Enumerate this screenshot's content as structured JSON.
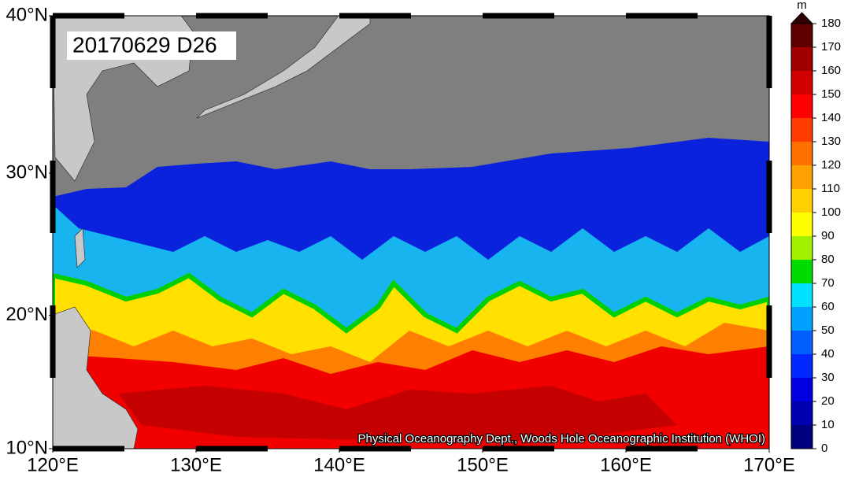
{
  "title": "20170629 D26",
  "credit": "Physical Oceanography Dept., Woods Hole Oceanographic Institution (WHOI)",
  "map": {
    "lonlim": [
      120,
      170
    ],
    "latlim": [
      10,
      40
    ],
    "lonticks": [
      {
        "value": 120,
        "label": "120°E"
      },
      {
        "value": 130,
        "label": "130°E"
      },
      {
        "value": 140,
        "label": "140°E"
      },
      {
        "value": 150,
        "label": "150°E"
      },
      {
        "value": 160,
        "label": "160°E"
      },
      {
        "value": 170,
        "label": "170°E"
      }
    ],
    "latticks": [
      {
        "value": 10,
        "label": "10°N"
      },
      {
        "value": 20,
        "label": "20°N"
      },
      {
        "value": 30,
        "label": "30°N"
      },
      {
        "value": 40,
        "label": "40°N"
      }
    ]
  },
  "colorbar": {
    "unit": "m",
    "lim": [
      0,
      180
    ],
    "ticks": [
      0,
      10,
      20,
      30,
      40,
      50,
      60,
      70,
      80,
      90,
      100,
      110,
      120,
      130,
      140,
      150,
      160,
      170,
      180
    ],
    "colors": [
      "#00007f",
      "#0000b0",
      "#0000e0",
      "#0028ff",
      "#0060ff",
      "#00a0ff",
      "#00e0ff",
      "#00dc00",
      "#a0f000",
      "#ffff00",
      "#ffd000",
      "#ffa000",
      "#ff7000",
      "#ff3c00",
      "#ff0000",
      "#d00000",
      "#a00000",
      "#600000"
    ],
    "over_color": "#300000"
  }
}
